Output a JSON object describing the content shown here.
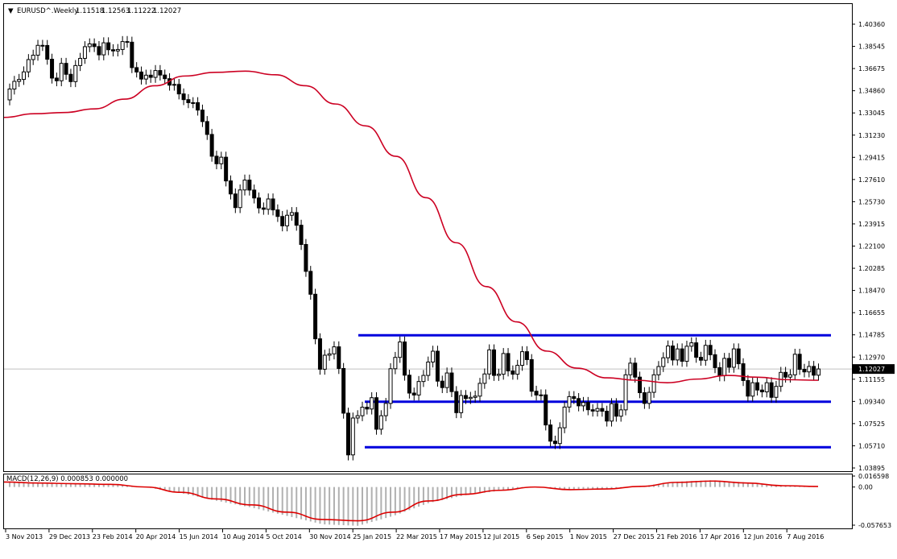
{
  "header": {
    "menu_glyph": "▼",
    "symbol": "EURUSD^.Weekly",
    "open": "1.11518",
    "high": "1.12563",
    "low": "1.11222",
    "close": "1.12027"
  },
  "macd_header": "MACD(12,26,9) 0.000853 0.000000",
  "chart_data": [
    {
      "type": "candlestick",
      "title": "EURUSD^.Weekly",
      "xlabel": "",
      "ylabel": "",
      "x_tick_labels": [
        "3 Nov 2013",
        "29 Dec 2013",
        "23 Feb 2014",
        "20 Apr 2014",
        "15 Jun 2014",
        "10 Aug 2014",
        "5 Oct 2014",
        "30 Nov 2014",
        "25 Jan 2015",
        "22 Mar 2015",
        "17 May 2015",
        "12 Jul 2015",
        "6 Sep 2015",
        "1 Nov 2015",
        "27 Dec 2015",
        "21 Feb 2016",
        "17 Apr 2016",
        "12 Jun 2016",
        "7 Aug 2016"
      ],
      "y_tick_labels": [
        "1.40360",
        "1.38545",
        "1.36675",
        "1.34860",
        "1.33045",
        "1.31230",
        "1.29415",
        "1.27610",
        "1.25730",
        "1.23915",
        "1.22100",
        "1.20285",
        "1.18470",
        "1.16655",
        "1.14785",
        "1.12970",
        "1.11155",
        "1.09340",
        "1.07525",
        "1.05710",
        "1.03895"
      ],
      "ylim": [
        1.03895,
        1.4036
      ],
      "grid": false,
      "current_price": "1.12027",
      "candles_open_close": [
        [
          1.3414,
          1.3503
        ],
        [
          1.3503,
          1.3566
        ],
        [
          1.3566,
          1.3582
        ],
        [
          1.3582,
          1.3644
        ],
        [
          1.3644,
          1.3745
        ],
        [
          1.3745,
          1.3781
        ],
        [
          1.3781,
          1.3862
        ],
        [
          1.3862,
          1.3861
        ],
        [
          1.3861,
          1.3748
        ],
        [
          1.3748,
          1.3593
        ],
        [
          1.3593,
          1.3571
        ],
        [
          1.3571,
          1.3714
        ],
        [
          1.3714,
          1.3624
        ],
        [
          1.3624,
          1.3564
        ],
        [
          1.3564,
          1.3696
        ],
        [
          1.3696,
          1.3755
        ],
        [
          1.3755,
          1.3851
        ],
        [
          1.3851,
          1.3874
        ],
        [
          1.3874,
          1.3852
        ],
        [
          1.3852,
          1.3784
        ],
        [
          1.3784,
          1.3883
        ],
        [
          1.3883,
          1.3826
        ],
        [
          1.3826,
          1.3816
        ],
        [
          1.3816,
          1.3828
        ],
        [
          1.3828,
          1.3893
        ],
        [
          1.3893,
          1.3888
        ],
        [
          1.3888,
          1.3679
        ],
        [
          1.3679,
          1.3643
        ],
        [
          1.3643,
          1.3585
        ],
        [
          1.3585,
          1.3617
        ],
        [
          1.3617,
          1.3599
        ],
        [
          1.3599,
          1.3655
        ],
        [
          1.3655,
          1.3618
        ],
        [
          1.3618,
          1.3588
        ],
        [
          1.3588,
          1.3535
        ],
        [
          1.3535,
          1.3541
        ],
        [
          1.3541,
          1.3463
        ],
        [
          1.3463,
          1.3416
        ],
        [
          1.3416,
          1.3391
        ],
        [
          1.3391,
          1.3391
        ],
        [
          1.3391,
          1.333
        ],
        [
          1.333,
          1.3236
        ],
        [
          1.3236,
          1.313
        ],
        [
          1.313,
          1.2951
        ],
        [
          1.2951,
          1.2889
        ],
        [
          1.2889,
          1.2943
        ],
        [
          1.2943,
          1.2748
        ],
        [
          1.2748,
          1.2641
        ],
        [
          1.2641,
          1.2529
        ],
        [
          1.2529,
          1.2674
        ],
        [
          1.2674,
          1.2755
        ],
        [
          1.2755,
          1.2673
        ],
        [
          1.2673,
          1.2608
        ],
        [
          1.2608,
          1.2526
        ],
        [
          1.2526,
          1.2515
        ],
        [
          1.2515,
          1.26
        ],
        [
          1.26,
          1.251
        ],
        [
          1.251,
          1.2456
        ],
        [
          1.2456,
          1.2379
        ],
        [
          1.2379,
          1.2466
        ],
        [
          1.2466,
          1.2488
        ],
        [
          1.2488,
          1.2384
        ],
        [
          1.2384,
          1.2226
        ],
        [
          1.2226,
          1.2005
        ],
        [
          1.2005,
          1.1817
        ],
        [
          1.1817,
          1.1451
        ],
        [
          1.1451,
          1.1201
        ],
        [
          1.1201,
          1.1316
        ],
        [
          1.1316,
          1.1327
        ],
        [
          1.1327,
          1.1385
        ],
        [
          1.1385,
          1.1207
        ],
        [
          1.1207,
          1.084
        ],
        [
          1.084,
          1.0497
        ],
        [
          1.0497,
          1.08
        ],
        [
          1.08,
          1.0819
        ],
        [
          1.0819,
          1.0889
        ],
        [
          1.0889,
          1.0874
        ],
        [
          1.0874,
          1.0967
        ],
        [
          1.0967,
          1.0708
        ],
        [
          1.0708,
          1.0819
        ],
        [
          1.0819,
          1.092
        ],
        [
          1.092,
          1.1205
        ],
        [
          1.1205,
          1.1298
        ],
        [
          1.1298,
          1.1425
        ],
        [
          1.1425,
          1.1152
        ],
        [
          1.1152,
          1.1005
        ],
        [
          1.1005,
          1.0989
        ],
        [
          1.0989,
          1.11
        ],
        [
          1.11,
          1.115
        ],
        [
          1.115,
          1.126
        ],
        [
          1.126,
          1.1349
        ],
        [
          1.1349,
          1.1103
        ],
        [
          1.1103,
          1.105
        ],
        [
          1.105,
          1.117
        ],
        [
          1.117,
          1.1017
        ],
        [
          1.1017,
          1.0844
        ],
        [
          1.0844,
          1.0985
        ],
        [
          1.0985,
          1.096
        ],
        [
          1.096,
          1.097
        ],
        [
          1.097,
          1.098
        ],
        [
          1.098,
          1.1085
        ],
        [
          1.1085,
          1.1162
        ],
        [
          1.1162,
          1.136
        ],
        [
          1.136,
          1.115
        ],
        [
          1.115,
          1.116
        ],
        [
          1.116,
          1.133
        ],
        [
          1.133,
          1.1187
        ],
        [
          1.1187,
          1.116
        ],
        [
          1.116,
          1.1233
        ],
        [
          1.1233,
          1.1345
        ],
        [
          1.1345,
          1.128
        ],
        [
          1.128,
          1.102
        ],
        [
          1.102,
          1.0989
        ],
        [
          1.0989,
          1.099
        ],
        [
          1.099,
          1.0743
        ],
        [
          1.0743,
          1.061
        ],
        [
          1.061,
          1.059
        ],
        [
          1.059,
          1.072
        ],
        [
          1.072,
          1.089
        ],
        [
          1.089,
          1.0976
        ],
        [
          1.0976,
          1.096
        ],
        [
          1.096,
          1.09
        ],
        [
          1.09,
          1.0928
        ],
        [
          1.0928,
          1.0868
        ],
        [
          1.0868,
          1.0857
        ],
        [
          1.0857,
          1.0878
        ],
        [
          1.0878,
          1.0856
        ],
        [
          1.0856,
          1.0775
        ],
        [
          1.0775,
          1.0918
        ],
        [
          1.0918,
          1.0815
        ],
        [
          1.0815,
          1.0867
        ],
        [
          1.0867,
          1.1155
        ],
        [
          1.1155,
          1.1251
        ],
        [
          1.1251,
          1.1136
        ],
        [
          1.1136,
          1.1008
        ],
        [
          1.1008,
          1.092
        ],
        [
          1.092,
          1.1011
        ],
        [
          1.1011,
          1.1155
        ],
        [
          1.1155,
          1.1223
        ],
        [
          1.1223,
          1.1295
        ],
        [
          1.1295,
          1.1392
        ],
        [
          1.1392,
          1.1277
        ],
        [
          1.1277,
          1.1368
        ],
        [
          1.1368,
          1.1266
        ],
        [
          1.1266,
          1.139
        ],
        [
          1.139,
          1.1418
        ],
        [
          1.1418,
          1.1299
        ],
        [
          1.1299,
          1.1275
        ],
        [
          1.1275,
          1.1397
        ],
        [
          1.1397,
          1.132
        ],
        [
          1.132,
          1.1214
        ],
        [
          1.1214,
          1.1147
        ],
        [
          1.1147,
          1.129
        ],
        [
          1.129,
          1.1217
        ],
        [
          1.1217,
          1.1368
        ],
        [
          1.1368,
          1.1246
        ],
        [
          1.1246,
          1.1108
        ],
        [
          1.1108,
          1.098
        ],
        [
          1.098,
          1.109
        ],
        [
          1.109,
          1.103
        ],
        [
          1.103,
          1.1015
        ],
        [
          1.1015,
          1.109
        ],
        [
          1.109,
          1.097
        ],
        [
          1.097,
          1.106
        ],
        [
          1.106,
          1.1175
        ],
        [
          1.1175,
          1.1136
        ],
        [
          1.1136,
          1.1155
        ],
        [
          1.1155,
          1.1324
        ],
        [
          1.1324,
          1.12
        ],
        [
          1.12,
          1.1179
        ],
        [
          1.1179,
          1.1224
        ],
        [
          1.1224,
          1.1152
        ],
        [
          1.1152,
          1.1203
        ]
      ],
      "ma_level_prints": [
        1.327,
        1.33,
        1.331,
        1.334,
        1.342,
        1.353,
        1.361,
        1.364,
        1.365,
        1.362,
        1.353,
        1.338,
        1.32,
        1.295,
        1.261,
        1.224,
        1.188,
        1.159,
        1.135,
        1.121,
        1.113,
        1.111,
        1.109,
        1.112,
        1.115,
        1.1135,
        1.1115,
        1.111
      ],
      "hlines": [
        1.148,
        1.0934,
        1.056
      ]
    },
    {
      "type": "bar",
      "title": "MACD(12,26,9) 0.000853 0.000000",
      "y_tick_labels": [
        "0.016598",
        "0.00",
        "-0.057653"
      ],
      "ylim": [
        -0.057653,
        0.016598
      ],
      "signal_prints": [
        0.0075,
        0.006,
        0.005,
        0.004,
        0.0,
        -0.008,
        -0.018,
        -0.027,
        -0.038,
        -0.049,
        -0.051,
        -0.038,
        -0.021,
        -0.011,
        -0.005,
        0.0,
        -0.004,
        -0.003,
        0.001,
        0.007,
        0.009,
        0.006,
        0.002,
        0.0008
      ]
    }
  ]
}
